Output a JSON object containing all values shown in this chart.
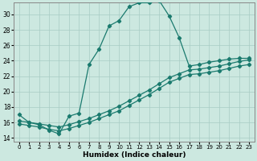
{
  "xlabel": "Humidex (Indice chaleur)",
  "bg_color": "#cce8e0",
  "grid_color": "#a8ccC4",
  "line_color": "#1a7a6e",
  "xlim": [
    -0.5,
    23.5
  ],
  "ylim": [
    13.5,
    31.5
  ],
  "yticks": [
    14,
    16,
    18,
    20,
    22,
    24,
    26,
    28,
    30
  ],
  "xticks": [
    0,
    1,
    2,
    3,
    4,
    5,
    6,
    7,
    8,
    9,
    10,
    11,
    12,
    13,
    14,
    15,
    16,
    17,
    18,
    19,
    20,
    21,
    22,
    23
  ],
  "curve1_x": [
    0,
    1,
    2,
    3,
    4,
    5,
    6,
    7,
    8,
    9,
    10,
    11,
    12,
    13,
    14,
    15,
    16,
    17,
    18,
    19,
    20,
    21,
    22,
    23
  ],
  "curve1_y": [
    17,
    16,
    15.7,
    15.0,
    14.5,
    16.8,
    17.2,
    23.5,
    25.5,
    28.5,
    29.2,
    31.0,
    31.5,
    31.5,
    31.8,
    29.8,
    27.0,
    23.3,
    23.5,
    23.8,
    24.0,
    24.2,
    24.3,
    24.3
  ],
  "curve2_x": [
    0,
    1,
    2,
    3,
    4,
    5,
    6,
    7,
    8,
    9,
    10,
    11,
    12,
    13,
    14,
    15,
    16,
    17,
    18,
    19,
    20,
    21,
    22,
    23
  ],
  "curve2_y": [
    16.2,
    16.0,
    15.8,
    15.6,
    15.4,
    15.7,
    16.1,
    16.5,
    17.0,
    17.5,
    18.1,
    18.8,
    19.5,
    20.2,
    21.0,
    21.8,
    22.3,
    22.8,
    22.9,
    23.1,
    23.3,
    23.6,
    23.9,
    24.1
  ],
  "curve3_x": [
    0,
    1,
    2,
    3,
    4,
    5,
    6,
    7,
    8,
    9,
    10,
    11,
    12,
    13,
    14,
    15,
    16,
    17,
    18,
    19,
    20,
    21,
    22,
    23
  ],
  "curve3_y": [
    15.8,
    15.6,
    15.4,
    15.1,
    14.9,
    15.2,
    15.6,
    16.0,
    16.5,
    17.0,
    17.5,
    18.2,
    18.9,
    19.6,
    20.4,
    21.2,
    21.7,
    22.2,
    22.3,
    22.5,
    22.7,
    23.0,
    23.3,
    23.5
  ],
  "ytick_fontsize": 5.5,
  "xtick_fontsize": 5.0,
  "xlabel_fontsize": 6.5
}
